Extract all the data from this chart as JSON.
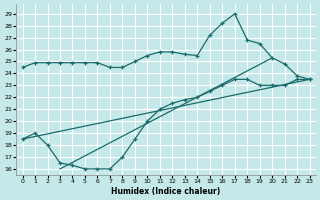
{
  "xlabel": "Humidex (Indice chaleur)",
  "bg_color": "#c5e8e8",
  "grid_color": "#ffffff",
  "line_color": "#1a6b6b",
  "x_ticks": [
    0,
    1,
    2,
    3,
    4,
    5,
    6,
    7,
    8,
    9,
    10,
    11,
    12,
    13,
    14,
    15,
    16,
    17,
    18,
    19,
    20,
    21,
    22,
    23
  ],
  "y_ticks": [
    16,
    17,
    18,
    19,
    20,
    21,
    22,
    23,
    24,
    25,
    26,
    27,
    28,
    29
  ],
  "ylim": [
    15.5,
    29.8
  ],
  "xlim": [
    -0.5,
    23.5
  ],
  "line1_x": [
    0,
    1,
    2,
    3,
    4,
    5,
    6,
    7,
    8,
    9,
    10,
    11,
    12,
    13,
    14,
    15,
    16,
    17,
    18,
    19,
    20,
    21,
    22,
    23
  ],
  "line1_y": [
    24.5,
    24.9,
    24.9,
    24.9,
    24.9,
    24.9,
    24.9,
    24.5,
    24.5,
    25.0,
    25.5,
    25.8,
    25.8,
    25.6,
    25.5,
    27.2,
    28.2,
    29.0,
    26.8,
    26.5,
    25.3,
    24.8,
    23.8,
    23.5
  ],
  "line2_x": [
    0,
    1,
    2,
    3,
    4,
    5,
    6,
    7,
    8,
    9,
    10,
    11,
    12,
    13,
    14,
    15,
    16,
    17,
    18,
    19,
    20,
    21,
    22,
    23
  ],
  "line2_y": [
    18.5,
    19.0,
    18.0,
    16.5,
    16.3,
    16.0,
    16.0,
    16.0,
    17.0,
    18.5,
    20.0,
    21.0,
    21.5,
    21.8,
    22.0,
    22.5,
    23.0,
    23.5,
    23.5,
    23.0,
    23.0,
    23.0,
    23.5,
    23.5
  ],
  "line3_x": [
    0,
    23
  ],
  "line3_y": [
    18.5,
    23.5
  ],
  "line4_x": [
    3,
    20
  ],
  "line4_y": [
    16.0,
    25.3
  ]
}
